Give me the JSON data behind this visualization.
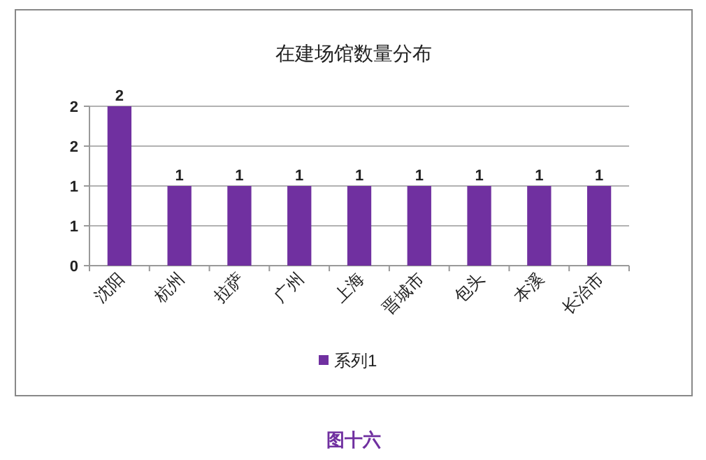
{
  "chart_data": {
    "type": "bar",
    "title": "在建场馆数量分布",
    "categories": [
      "沈阳",
      "杭州",
      "拉萨",
      "广州",
      "上海",
      "晋城市",
      "包头",
      "本溪",
      "长治市"
    ],
    "series": [
      {
        "name": "系列1",
        "color": "#7030a0",
        "values": [
          2,
          1,
          1,
          1,
          1,
          1,
          1,
          1,
          1
        ]
      }
    ],
    "ylim": [
      0,
      2
    ],
    "yticks": [
      0,
      {
        "value": 0.5,
        "label": "1"
      },
      1,
      {
        "value": 1.5,
        "label": "2"
      },
      2
    ],
    "grid": "y",
    "legend": "bottom",
    "data_labels": true,
    "annotations": [
      "图十六"
    ]
  }
}
